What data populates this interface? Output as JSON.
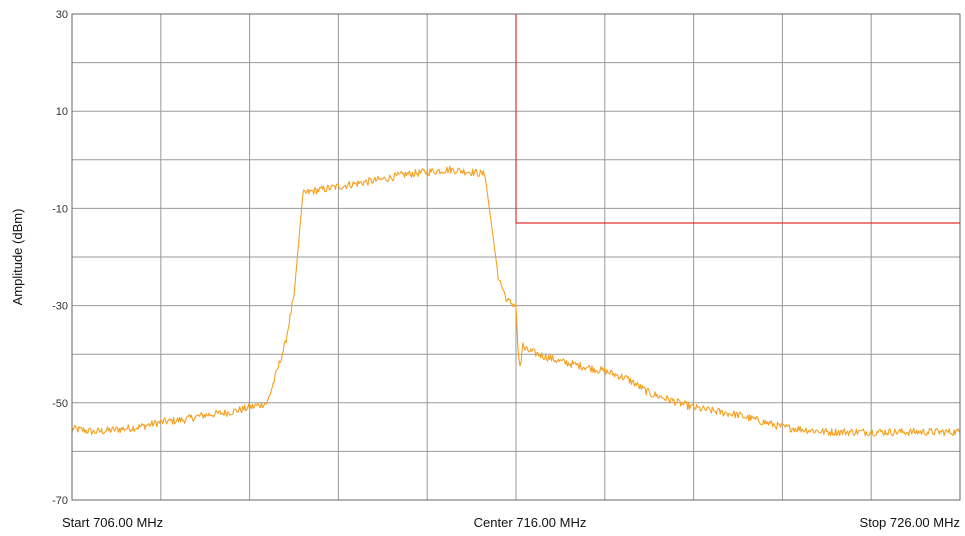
{
  "chart_data": {
    "type": "line",
    "ylabel": "Amplitude (dBm)",
    "ylim": [
      -70,
      30
    ],
    "yticks": [
      30,
      10,
      -10,
      -30,
      -50,
      -70
    ],
    "y_gridlines": [
      30,
      20,
      10,
      0,
      -10,
      -20,
      -30,
      -40,
      -50,
      -60,
      -70
    ],
    "xlim": [
      706.0,
      726.0
    ],
    "x_unit": "MHz",
    "x_gridlines": [
      706,
      708,
      710,
      712,
      714,
      716,
      718,
      720,
      722,
      724,
      726
    ],
    "x_labels": {
      "start": "Start 706.00 MHz",
      "center": "Center 716.00 MHz",
      "stop": "Stop 726.00 MHz"
    },
    "grid": true,
    "colors": {
      "trace": "#f5a020",
      "limit_line": "#e03030",
      "grid": "#999999",
      "frame": "#666666"
    },
    "series": [
      {
        "color": "#f5a020",
        "x": [
          706.0,
          706.5,
          707.0,
          707.5,
          708.0,
          708.5,
          709.0,
          709.5,
          710.0,
          710.4,
          710.6,
          710.8,
          711.0,
          711.2,
          711.4,
          712.0,
          713.0,
          713.5,
          714.0,
          714.5,
          715.0,
          715.3,
          715.6,
          715.8,
          716.0,
          716.05,
          716.1,
          716.15,
          716.2,
          716.5,
          717.0,
          718.0,
          718.5,
          719.0,
          719.5,
          720.0,
          721.0,
          722.0,
          723.0,
          724.0,
          725.0,
          726.0
        ],
        "values": [
          -55.3,
          -56.0,
          -55.5,
          -55.0,
          -54.0,
          -53.5,
          -52.5,
          -52.0,
          -51.0,
          -50.0,
          -44.0,
          -38.0,
          -28.0,
          -7.0,
          -6.5,
          -5.5,
          -4.0,
          -3.0,
          -2.5,
          -2.0,
          -2.5,
          -3.0,
          -24.0,
          -29.0,
          -30.0,
          -40.0,
          -43.0,
          -38.0,
          -39.0,
          -40.0,
          -41.5,
          -43.5,
          -45.0,
          -48.0,
          -49.5,
          -51.0,
          -52.5,
          -55.0,
          -56.0,
          -56.0,
          -56.0,
          -56.0
        ]
      }
    ],
    "limit_line": {
      "x": [
        716.0,
        716.0,
        726.0
      ],
      "values": [
        30,
        -13,
        -13
      ]
    }
  }
}
